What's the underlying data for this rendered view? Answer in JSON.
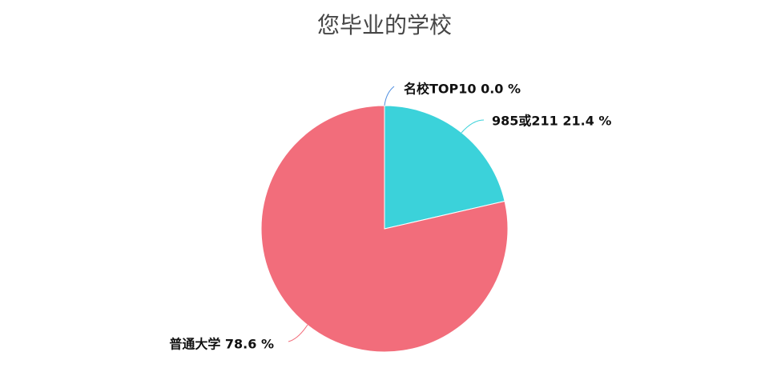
{
  "chart_data": {
    "type": "pie",
    "title": "您毕业的学校",
    "slices": [
      {
        "name": "名校TOP10",
        "value": 0.0,
        "label": "名校TOP10 0.0 %",
        "color": "#4e8ee0"
      },
      {
        "name": "985或211",
        "value": 21.4,
        "label": "985或211 21.4 %",
        "color": "#3bd2da"
      },
      {
        "name": "普通大学",
        "value": 78.6,
        "label": "普通大学 78.6 %",
        "color": "#f26d7b"
      }
    ]
  }
}
